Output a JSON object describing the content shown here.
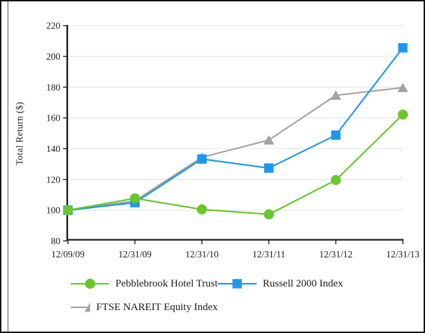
{
  "chart_data": {
    "type": "line",
    "ylabel": "Total Return ($)",
    "categories": [
      "12/09/09",
      "12/31/09",
      "12/31/10",
      "12/31/11",
      "12/31/12",
      "12/31/13"
    ],
    "series": [
      {
        "name": "Pebblebrook Hotel Trust",
        "marker": "circle",
        "color": "#69C72B",
        "values": [
          100,
          107.7,
          100.5,
          97.3,
          119.6,
          162.2
        ]
      },
      {
        "name": "Russell 2000 Index",
        "marker": "square",
        "color": "#1E97F0",
        "values": [
          100,
          104.9,
          133.3,
          127.4,
          148.8,
          205.6
        ]
      },
      {
        "name": "FTSE NAREIT Equity Index",
        "marker": "triangle",
        "color": "#A3A3A3",
        "values": [
          100,
          106.0,
          134.4,
          145.6,
          174.7,
          179.7
        ]
      }
    ],
    "ylim": [
      80,
      220
    ],
    "yticks": [
      80,
      100,
      120,
      140,
      160,
      180,
      200,
      220
    ],
    "grid": true,
    "legend_position": "bottom",
    "colors": {
      "axis": "#1a1a1a",
      "gridline": "#e7e7e7",
      "text": "#1a1a1a"
    }
  }
}
